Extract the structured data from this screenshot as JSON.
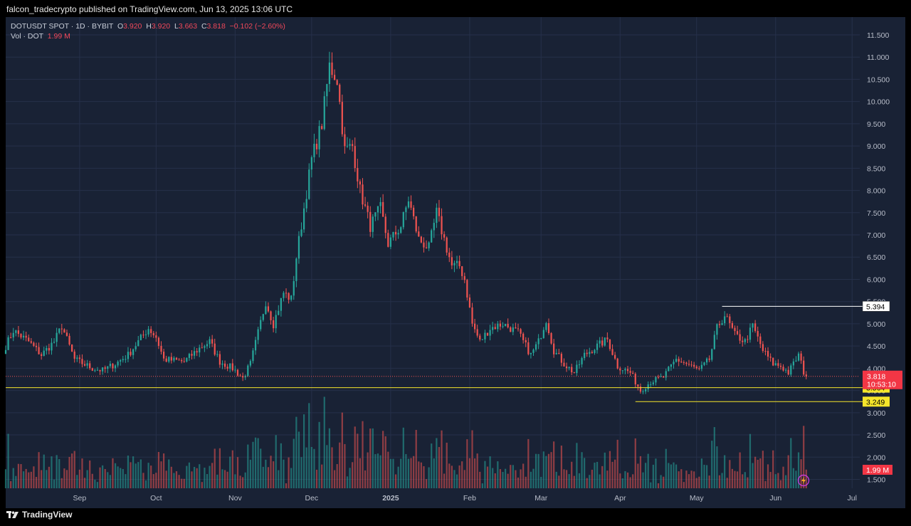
{
  "header": {
    "publish_line": "falcon_tradecrypto published on TradingView.com, Jun 13, 2025 13:06 UTC"
  },
  "footer": {
    "brand": "TradingView",
    "brand_icon": "tradingview-logo-icon"
  },
  "legend": {
    "symbol": "DOTUSDT SPOT · 1D · BYBIT",
    "o_label": "O",
    "o_value": "3.920",
    "h_label": "H",
    "h_value": "3.920",
    "l_label": "L",
    "l_value": "3.663",
    "c_label": "C",
    "c_value": "3.818",
    "change": "−0.102 (−2.60%)",
    "vol_label": "Vol · DOT",
    "vol_value": "1.99 M"
  },
  "colors": {
    "up": "#26a69a",
    "down": "#ef5350",
    "background": "#192235",
    "grid": "#26304a",
    "yellow": "#f5e52b"
  },
  "chart_data": {
    "type": "candlestick",
    "y_ticks": [
      "11.500",
      "11.000",
      "10.500",
      "10.000",
      "9.500",
      "9.000",
      "8.500",
      "8.000",
      "7.500",
      "7.000",
      "6.500",
      "6.000",
      "5.500",
      "5.000",
      "4.500",
      "4.000",
      "3.500",
      "3.000",
      "2.500",
      "2.000",
      "1.500"
    ],
    "y_tick_values": [
      11.5,
      11.0,
      10.5,
      10.0,
      9.5,
      9.0,
      8.5,
      8.0,
      7.5,
      7.0,
      6.5,
      6.0,
      5.5,
      5.0,
      4.5,
      4.0,
      3.5,
      3.0,
      2.5,
      2.0,
      1.5
    ],
    "ylim": [
      1.3,
      11.9
    ],
    "x_ticks": [
      {
        "label": "Sep",
        "date": "2024-09-01",
        "bold": false
      },
      {
        "label": "Oct",
        "date": "2024-10-01",
        "bold": false
      },
      {
        "label": "Nov",
        "date": "2024-11-01",
        "bold": false
      },
      {
        "label": "Dec",
        "date": "2024-12-01",
        "bold": false
      },
      {
        "label": "2025",
        "date": "2025-01-01",
        "bold": true
      },
      {
        "label": "Feb",
        "date": "2025-02-01",
        "bold": false
      },
      {
        "label": "Mar",
        "date": "2025-03-01",
        "bold": false
      },
      {
        "label": "Apr",
        "date": "2025-04-01",
        "bold": false
      },
      {
        "label": "May",
        "date": "2025-05-01",
        "bold": false
      },
      {
        "label": "Jun",
        "date": "2025-06-01",
        "bold": false
      },
      {
        "label": "Jul",
        "date": "2025-07-01",
        "bold": false
      }
    ],
    "xlim": [
      "2024-08-03",
      "2025-07-04"
    ],
    "close_anchors": [
      [
        "2024-08-03",
        4.5
      ],
      [
        "2024-08-06",
        4.85
      ],
      [
        "2024-08-12",
        4.6
      ],
      [
        "2024-08-17",
        4.3
      ],
      [
        "2024-08-22",
        4.6
      ],
      [
        "2024-08-25",
        4.95
      ],
      [
        "2024-08-30",
        4.2
      ],
      [
        "2024-09-06",
        4.0
      ],
      [
        "2024-09-10",
        3.95
      ],
      [
        "2024-09-15",
        4.1
      ],
      [
        "2024-09-20",
        4.3
      ],
      [
        "2024-09-28",
        4.9
      ],
      [
        "2024-10-01",
        4.7
      ],
      [
        "2024-10-04",
        4.2
      ],
      [
        "2024-10-12",
        4.15
      ],
      [
        "2024-10-18",
        4.45
      ],
      [
        "2024-10-22",
        4.6
      ],
      [
        "2024-10-26",
        4.15
      ],
      [
        "2024-10-31",
        4.0
      ],
      [
        "2024-11-04",
        3.78
      ],
      [
        "2024-11-07",
        4.1
      ],
      [
        "2024-11-10",
        4.8
      ],
      [
        "2024-11-13",
        5.5
      ],
      [
        "2024-11-16",
        5.0
      ],
      [
        "2024-11-20",
        5.7
      ],
      [
        "2024-11-23",
        5.55
      ],
      [
        "2024-11-25",
        6.5
      ],
      [
        "2024-11-28",
        7.6
      ],
      [
        "2024-12-01",
        8.7
      ],
      [
        "2024-12-05",
        9.5
      ],
      [
        "2024-12-08",
        10.8
      ],
      [
        "2024-12-11",
        10.5
      ],
      [
        "2024-12-14",
        8.9
      ],
      [
        "2024-12-17",
        9.0
      ],
      [
        "2024-12-20",
        8.0
      ],
      [
        "2024-12-24",
        7.2
      ],
      [
        "2024-12-28",
        7.6
      ],
      [
        "2024-12-31",
        6.8
      ],
      [
        "2025-01-05",
        7.2
      ],
      [
        "2025-01-08",
        7.8
      ],
      [
        "2025-01-12",
        6.9
      ],
      [
        "2025-01-16",
        6.7
      ],
      [
        "2025-01-19",
        7.5
      ],
      [
        "2025-01-22",
        6.9
      ],
      [
        "2025-01-25",
        6.3
      ],
      [
        "2025-01-28",
        6.3
      ],
      [
        "2025-01-30",
        6.0
      ],
      [
        "2025-02-02",
        5.0
      ],
      [
        "2025-02-05",
        4.6
      ],
      [
        "2025-02-09",
        4.9
      ],
      [
        "2025-02-14",
        5.0
      ],
      [
        "2025-02-20",
        4.8
      ],
      [
        "2025-02-25",
        4.3
      ],
      [
        "2025-02-28",
        4.6
      ],
      [
        "2025-03-03",
        5.1
      ],
      [
        "2025-03-06",
        4.4
      ],
      [
        "2025-03-10",
        4.1
      ],
      [
        "2025-03-14",
        3.9
      ],
      [
        "2025-03-18",
        4.3
      ],
      [
        "2025-03-23",
        4.5
      ],
      [
        "2025-03-27",
        4.65
      ],
      [
        "2025-03-31",
        4.05
      ],
      [
        "2025-04-05",
        3.9
      ],
      [
        "2025-04-09",
        3.5
      ],
      [
        "2025-04-13",
        3.7
      ],
      [
        "2025-04-18",
        3.8
      ],
      [
        "2025-04-23",
        4.2
      ],
      [
        "2025-04-27",
        4.1
      ],
      [
        "2025-05-02",
        3.95
      ],
      [
        "2025-05-06",
        4.2
      ],
      [
        "2025-05-09",
        4.9
      ],
      [
        "2025-05-12",
        5.2
      ],
      [
        "2025-05-16",
        4.75
      ],
      [
        "2025-05-20",
        4.6
      ],
      [
        "2025-05-23",
        4.95
      ],
      [
        "2025-05-27",
        4.4
      ],
      [
        "2025-05-31",
        4.1
      ],
      [
        "2025-06-03",
        4.05
      ],
      [
        "2025-06-06",
        3.9
      ],
      [
        "2025-06-10",
        4.3
      ],
      [
        "2025-06-12",
        3.92
      ],
      [
        "2025-06-13",
        3.818
      ]
    ],
    "volume_scale_note": "",
    "current_price": {
      "value": 3.818,
      "label": "3.818",
      "countdown": "10:53:10"
    },
    "levels": [
      {
        "value": 5.394,
        "label": "5.394",
        "from": "2025-05-11"
      },
      {
        "value": 3.564,
        "label": "3.564",
        "from": "2024-08-03"
      },
      {
        "value": 3.249,
        "label": "3.249",
        "from": "2025-04-07"
      }
    ],
    "volume_tag": "1.99 M"
  }
}
